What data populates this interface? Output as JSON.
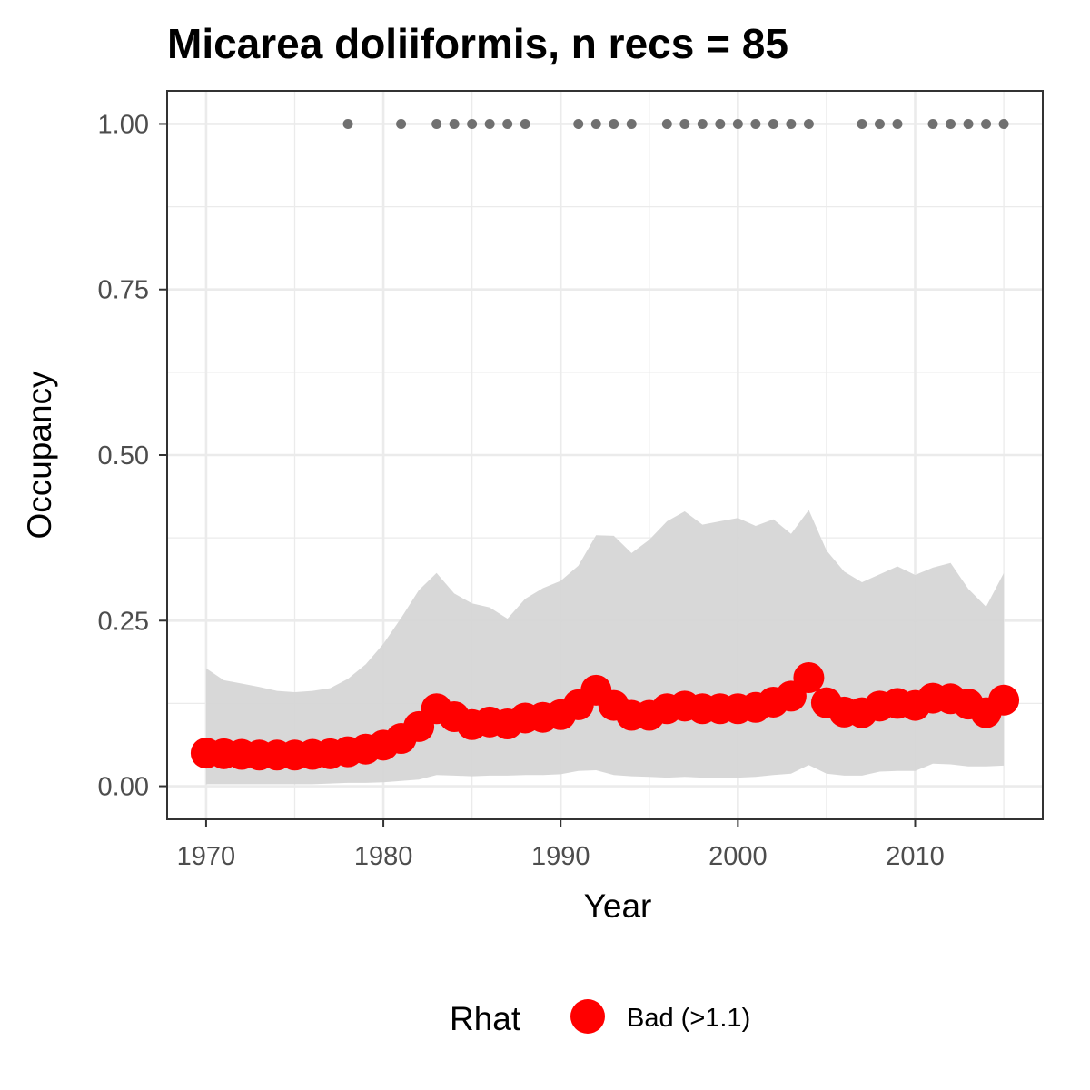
{
  "chart_data": {
    "type": "line",
    "title": "Micarea doliiformis, n recs = 85",
    "xlabel": "Year",
    "ylabel": "Occupancy",
    "xlim": [
      1967.8,
      2017.2
    ],
    "ylim": [
      -0.05,
      1.05
    ],
    "x_ticks": [
      1970,
      1980,
      1990,
      2000,
      2010
    ],
    "y_ticks": [
      0.0,
      0.25,
      0.5,
      0.75,
      1.0
    ],
    "x_tick_labels": [
      "1970",
      "1980",
      "1990",
      "2000",
      "2010"
    ],
    "y_tick_labels": [
      "0.00",
      "0.25",
      "0.50",
      "0.75",
      "1.00"
    ],
    "grid": true,
    "legend": {
      "title": "Rhat",
      "position": "bottom",
      "entries": [
        {
          "label": "Bad (>1.1)",
          "color": "#ff0000"
        }
      ]
    },
    "colors": {
      "mean": "#ff0000",
      "ribbon": "#d6d6d6",
      "records": "#707070",
      "grid": "#ebebeb",
      "border": "#333333"
    },
    "years": [
      1970,
      1971,
      1972,
      1973,
      1974,
      1975,
      1976,
      1977,
      1978,
      1979,
      1980,
      1981,
      1982,
      1983,
      1984,
      1985,
      1986,
      1987,
      1988,
      1989,
      1990,
      1991,
      1992,
      1993,
      1994,
      1995,
      1996,
      1997,
      1998,
      1999,
      2000,
      2001,
      2002,
      2003,
      2004,
      2005,
      2006,
      2007,
      2008,
      2009,
      2010,
      2011,
      2012,
      2013,
      2014,
      2015
    ],
    "series": [
      {
        "name": "Bad (>1.1)",
        "role": "mean occupancy",
        "values": [
          0.05,
          0.049,
          0.048,
          0.047,
          0.047,
          0.047,
          0.048,
          0.049,
          0.052,
          0.056,
          0.062,
          0.072,
          0.09,
          0.117,
          0.105,
          0.093,
          0.097,
          0.094,
          0.103,
          0.104,
          0.108,
          0.123,
          0.145,
          0.122,
          0.107,
          0.107,
          0.117,
          0.121,
          0.117,
          0.117,
          0.117,
          0.119,
          0.127,
          0.136,
          0.164,
          0.126,
          0.112,
          0.111,
          0.121,
          0.125,
          0.122,
          0.133,
          0.132,
          0.124,
          0.111,
          0.13
        ]
      }
    ],
    "ribbon": {
      "lower": [
        0.003,
        0.003,
        0.003,
        0.003,
        0.003,
        0.003,
        0.003,
        0.004,
        0.005,
        0.005,
        0.006,
        0.008,
        0.01,
        0.017,
        0.016,
        0.015,
        0.016,
        0.016,
        0.017,
        0.017,
        0.018,
        0.023,
        0.024,
        0.017,
        0.015,
        0.014,
        0.013,
        0.014,
        0.013,
        0.013,
        0.013,
        0.014,
        0.017,
        0.019,
        0.032,
        0.019,
        0.016,
        0.016,
        0.022,
        0.023,
        0.023,
        0.034,
        0.033,
        0.03,
        0.03,
        0.031
      ],
      "upper": [
        0.178,
        0.16,
        0.155,
        0.15,
        0.144,
        0.142,
        0.144,
        0.148,
        0.162,
        0.184,
        0.215,
        0.254,
        0.296,
        0.322,
        0.291,
        0.276,
        0.27,
        0.253,
        0.283,
        0.299,
        0.31,
        0.333,
        0.379,
        0.378,
        0.352,
        0.372,
        0.4,
        0.415,
        0.395,
        0.4,
        0.405,
        0.393,
        0.403,
        0.381,
        0.417,
        0.356,
        0.324,
        0.308,
        0.32,
        0.332,
        0.319,
        0.33,
        0.337,
        0.298,
        0.271,
        0.322
      ]
    },
    "record_years": [
      1978,
      1981,
      1983,
      1984,
      1985,
      1986,
      1987,
      1988,
      1991,
      1992,
      1993,
      1994,
      1996,
      1997,
      1998,
      1999,
      2000,
      2001,
      2002,
      2003,
      2004,
      2007,
      2008,
      2009,
      2011,
      2012,
      2013,
      2014,
      2015
    ],
    "record_value": 1.0
  }
}
